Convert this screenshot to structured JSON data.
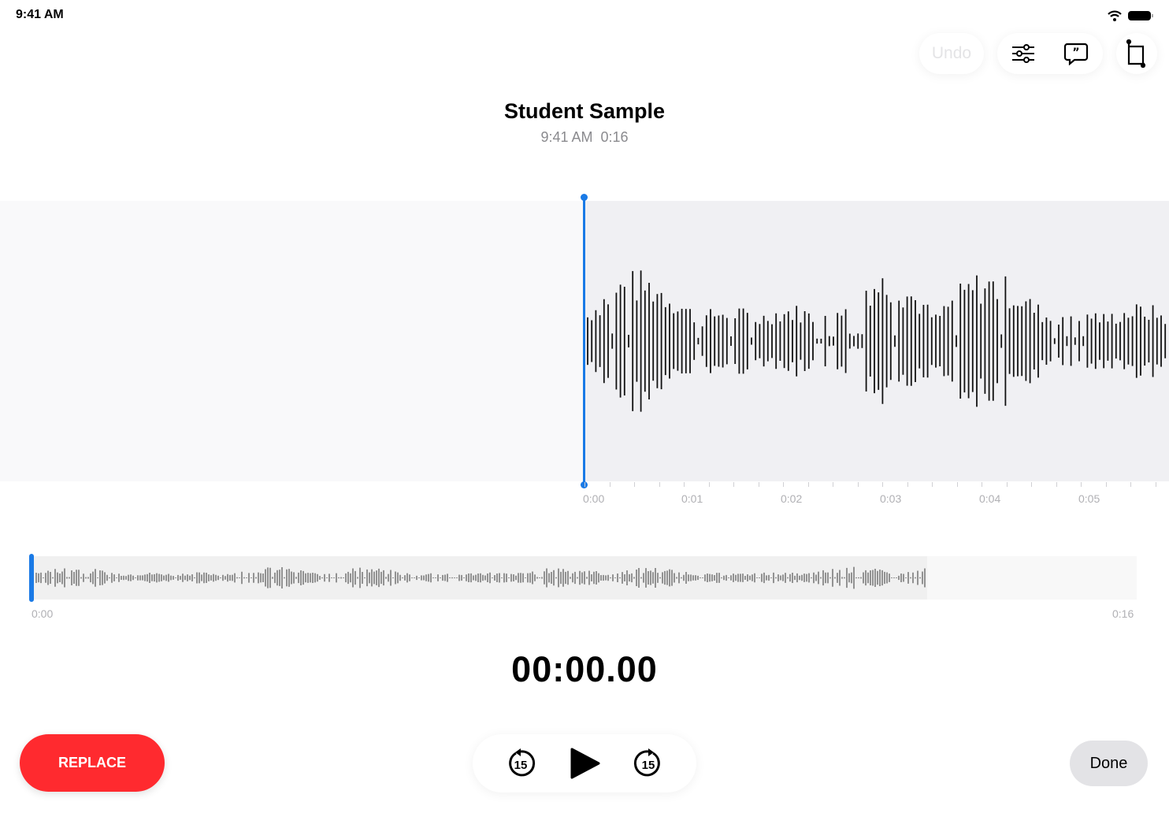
{
  "status_bar": {
    "time": "9:41 AM",
    "wifi_icon": "wifi-icon",
    "battery_icon": "battery-icon"
  },
  "toolbar": {
    "undo_label": "Undo",
    "settings_icon": "sliders-icon",
    "transcript_icon": "quote-bubble-icon",
    "trim_icon": "crop-icon"
  },
  "recording": {
    "title": "Student Sample",
    "time": "9:41 AM",
    "duration": "0:16"
  },
  "timeline": {
    "labels": [
      "0:00",
      "0:01",
      "0:02",
      "0:03",
      "0:04",
      "0:05"
    ]
  },
  "overview": {
    "start": "0:00",
    "end": "0:16",
    "progress": 0
  },
  "player": {
    "timer": "00:00.00",
    "skip_back_icon": "gobackward-15-icon",
    "play_icon": "play-icon",
    "skip_forward_icon": "goforward-15-icon"
  },
  "buttons": {
    "replace": "REPLACE",
    "done": "Done"
  },
  "colors": {
    "accent": "#1a7ae6",
    "record": "#ff2a2f"
  }
}
